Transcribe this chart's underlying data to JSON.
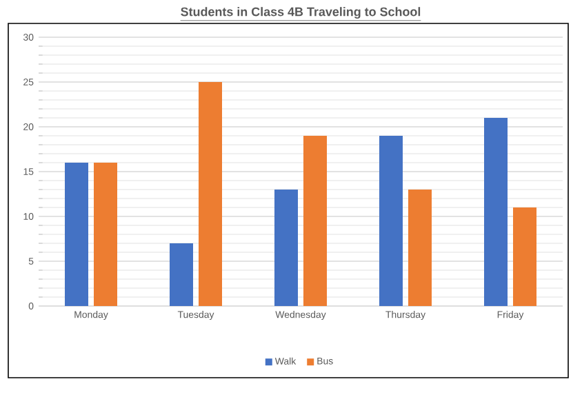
{
  "chart_data": {
    "type": "bar",
    "title": "Students in Class 4B Traveling to School",
    "categories": [
      "Monday",
      "Tuesday",
      "Wednesday",
      "Thursday",
      "Friday"
    ],
    "series": [
      {
        "name": "Walk",
        "color": "#4472c4",
        "values": [
          16,
          7,
          13,
          19,
          21
        ]
      },
      {
        "name": "Bus",
        "color": "#ed7d31",
        "values": [
          16,
          25,
          19,
          13,
          11
        ]
      }
    ],
    "ylim": [
      0,
      30
    ],
    "yticks": [
      0,
      5,
      10,
      15,
      20,
      25,
      30
    ],
    "grid": "y",
    "legend": "bottom"
  }
}
